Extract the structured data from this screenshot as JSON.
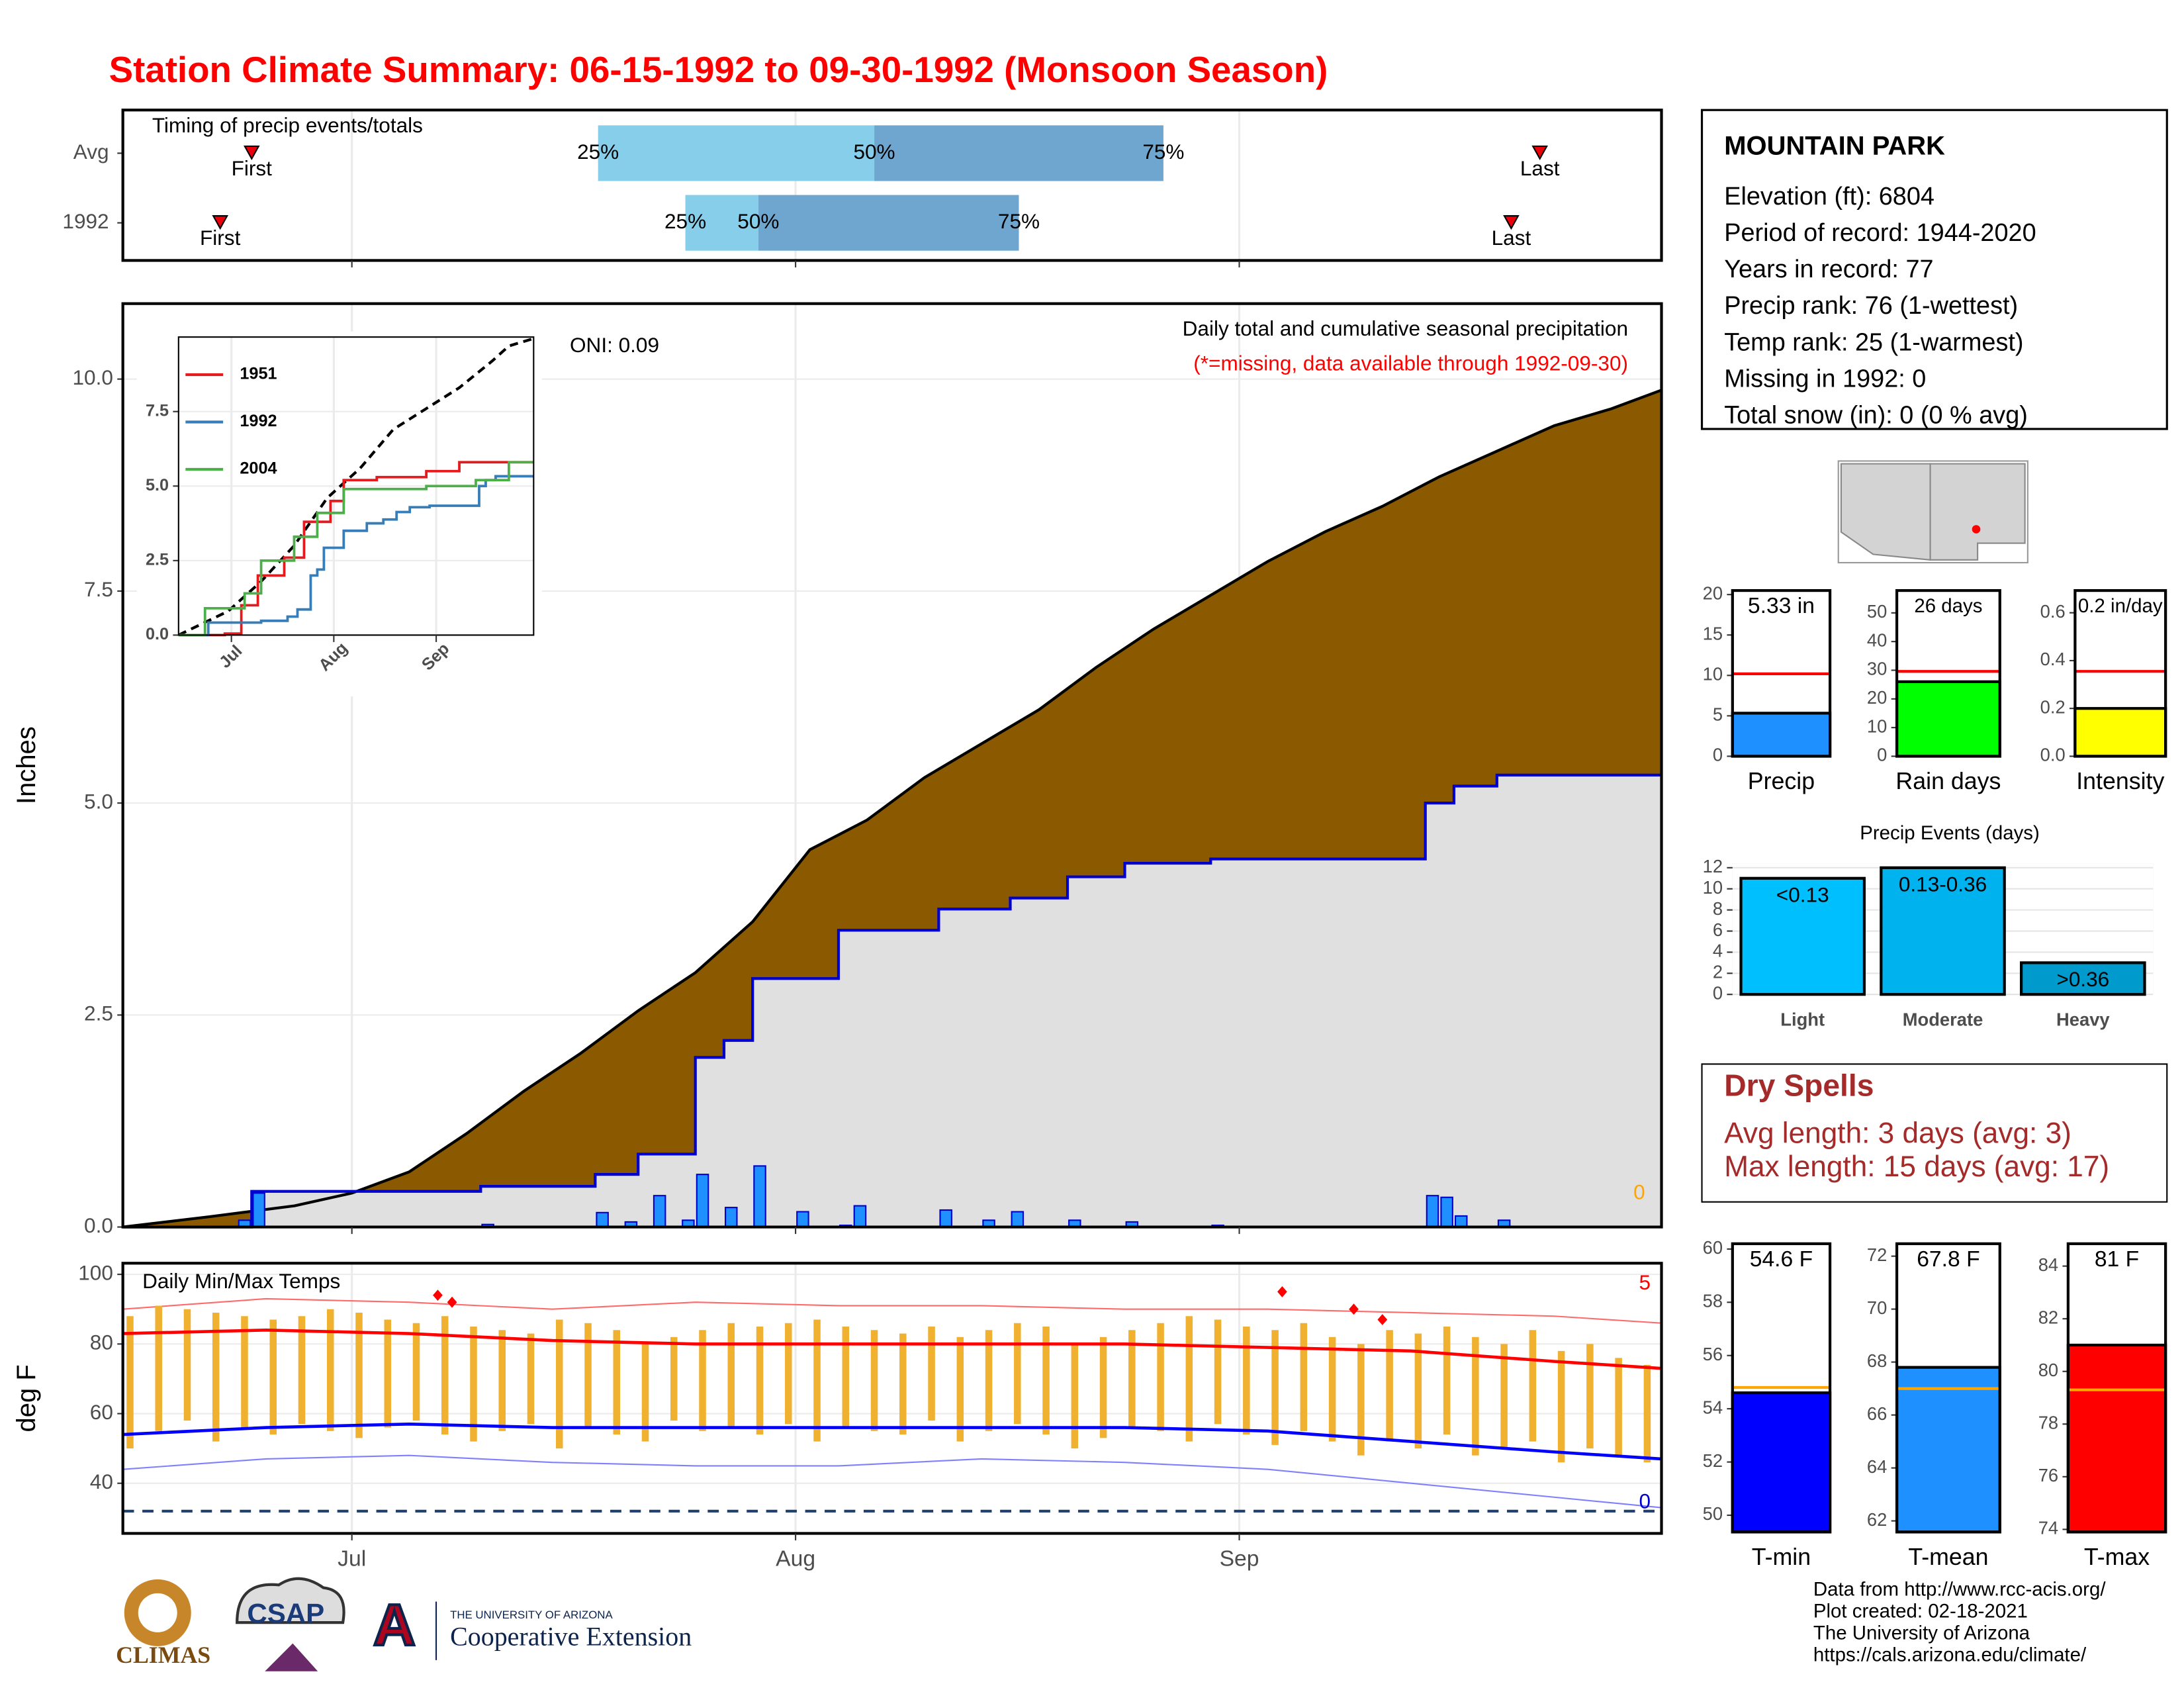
{
  "title": "Station Climate Summary: 06-15-1992 to 09-30-1992 (Monsoon Season)",
  "station": {
    "name": "MOUNTAIN PARK",
    "lines": [
      "Elevation (ft): 6804",
      "Period of record: 1944-2020",
      "Years in record: 77",
      "Precip rank: 76 (1-wettest)",
      "Temp rank: 25 (1-warmest)",
      "Missing in 1992: 0",
      "Total snow (in): 0 (0 % avg)"
    ]
  },
  "dry_spells": {
    "title": "Dry Spells",
    "lines": [
      "Avg length: 3 days (avg: 3)",
      "Max length: 15 days (avg: 17)"
    ]
  },
  "footer": {
    "logo_texts": [
      "CLIMAS",
      "CSAP",
      "THE UNIVERSITY OF ARIZONA",
      "Cooperative Extension"
    ],
    "credits": [
      "Data from http://www.rcc-acis.org/",
      "Plot created: 02-18-2021",
      "The University of Arizona",
      "https://cals.arizona.edu/climate/"
    ]
  },
  "chart_data": [
    {
      "type": "timing",
      "title": "Timing of precip events/totals",
      "categories": [
        "Avg",
        "1992"
      ],
      "first": [
        9,
        6.8
      ],
      "q25": [
        33.2,
        39.3
      ],
      "q50": [
        52.5,
        44.4
      ],
      "q75": [
        72.7,
        62.6
      ],
      "last": [
        99,
        97
      ],
      "labels": {
        "first": "First",
        "last": "Last",
        "q25": "25%",
        "q50": "50%",
        "q75": "75%"
      },
      "colors": [
        "#87ceeb",
        "#6fa6cf"
      ],
      "marker_color": "#e8000b",
      "xlim": [
        0,
        107.5
      ],
      "xticks": [
        16,
        47,
        78
      ],
      "grid": true
    },
    {
      "type": "area",
      "ylabel": "Inches",
      "note": "Daily total and cumulative seasonal precipitation",
      "note2": "(*=missing, data available through 1992-09-30)",
      "oni": "ONI: 0.09",
      "missing_count": 0,
      "average_cumulative": {
        "color": "#8b5a00",
        "x": [
          0,
          6,
          12,
          16,
          20,
          24,
          28,
          32,
          36,
          40,
          44,
          48,
          52,
          56,
          60,
          64,
          68,
          72,
          76,
          80,
          84,
          88,
          92,
          96,
          100,
          104,
          107.5
        ],
        "values": [
          0,
          0.12,
          0.25,
          0.4,
          0.65,
          1.1,
          1.6,
          2.05,
          2.55,
          3.0,
          3.6,
          4.45,
          4.8,
          5.3,
          5.7,
          6.1,
          6.6,
          7.05,
          7.45,
          7.85,
          8.2,
          8.5,
          8.85,
          9.15,
          9.45,
          9.65,
          9.87
        ]
      },
      "cumulative": {
        "color": "#0000cd",
        "fill": "#e0e0e0",
        "x": [
          0,
          9,
          9,
          25,
          25,
          33,
          33,
          36,
          36,
          40,
          40,
          42,
          42,
          44,
          44,
          50,
          50,
          57,
          57,
          62,
          62,
          66,
          66,
          70,
          70,
          76,
          76,
          91,
          91,
          93,
          93,
          96,
          96,
          107.5
        ],
        "values": [
          0,
          0,
          0.42,
          0.42,
          0.48,
          0.48,
          0.62,
          0.62,
          0.86,
          0.86,
          2.0,
          2.0,
          2.2,
          2.2,
          2.93,
          2.93,
          3.5,
          3.5,
          3.75,
          3.75,
          3.88,
          3.88,
          4.13,
          4.13,
          4.29,
          4.29,
          4.34,
          4.34,
          5.0,
          5.0,
          5.2,
          5.2,
          5.33,
          5.33
        ]
      },
      "daily": {
        "color": "#1e90ff",
        "x": [
          8,
          9,
          25,
          33,
          35,
          37,
          39,
          40,
          42,
          44,
          47,
          50,
          51,
          57,
          60,
          62,
          66,
          70,
          76,
          91,
          92,
          93,
          96
        ],
        "values": [
          0.08,
          0.4,
          0.03,
          0.17,
          0.06,
          0.37,
          0.08,
          0.62,
          0.23,
          0.72,
          0.18,
          0.02,
          0.25,
          0.2,
          0.08,
          0.18,
          0.08,
          0.06,
          0.02,
          0.37,
          0.35,
          0.13,
          0.08
        ]
      },
      "xlim": [
        0,
        107.5
      ],
      "xticks": [
        16,
        47,
        78
      ],
      "ylim": [
        0,
        10.89
      ],
      "yticks": [
        {
          "value": 0,
          "label": "0.0"
        },
        2.5,
        {
          "value": 5,
          "label": "5.0"
        },
        7.5,
        {
          "value": 10,
          "label": "10.0"
        }
      ],
      "grid": true
    },
    {
      "type": "line",
      "series": [
        {
          "name": "1951",
          "color": "#e41a1c",
          "x": [
            0,
            14,
            14,
            19,
            19,
            24,
            24,
            32,
            32,
            38,
            38,
            46,
            46,
            50,
            50,
            60,
            60,
            75,
            75,
            85,
            85,
            107.5
          ],
          "values": [
            0,
            0,
            0.05,
            0.05,
            1.0,
            1.0,
            2.0,
            2.0,
            2.6,
            2.6,
            3.8,
            3.8,
            4.5,
            4.5,
            5.2,
            5.2,
            5.3,
            5.3,
            5.5,
            5.5,
            5.8,
            5.8
          ]
        },
        {
          "name": "1992",
          "color": "#377eb8",
          "x": [
            0,
            9,
            9,
            25,
            25,
            33,
            33,
            36,
            36,
            40,
            40,
            42,
            42,
            44,
            44,
            50,
            50,
            57,
            57,
            62,
            62,
            66,
            66,
            70,
            70,
            76,
            76,
            91,
            91,
            93,
            93,
            96,
            96,
            107.5
          ],
          "values": [
            0,
            0,
            0.42,
            0.42,
            0.48,
            0.48,
            0.62,
            0.62,
            0.86,
            0.86,
            2.0,
            2.0,
            2.2,
            2.2,
            2.93,
            2.93,
            3.5,
            3.5,
            3.75,
            3.75,
            3.88,
            3.88,
            4.13,
            4.13,
            4.29,
            4.29,
            4.34,
            4.34,
            5.0,
            5.0,
            5.2,
            5.2,
            5.33,
            5.33
          ]
        },
        {
          "name": "2004",
          "color": "#4daf4a",
          "x": [
            0,
            8,
            8,
            20,
            20,
            25,
            25,
            35,
            35,
            42,
            42,
            50,
            50,
            75,
            75,
            90,
            90,
            100,
            100,
            107.5
          ],
          "values": [
            0,
            0,
            0.9,
            0.9,
            1.4,
            1.4,
            2.5,
            2.5,
            3.3,
            3.3,
            4.1,
            4.1,
            4.9,
            4.9,
            5.0,
            5.0,
            5.2,
            5.2,
            5.8,
            5.8
          ]
        }
      ],
      "average": {
        "color": "#000000",
        "x": [
          0,
          15,
          25,
          35,
          45,
          55,
          65,
          75,
          85,
          95,
          100,
          107.5
        ],
        "values": [
          0,
          0.8,
          1.8,
          3.0,
          4.6,
          5.6,
          6.9,
          7.6,
          8.3,
          9.2,
          9.7,
          9.95
        ]
      },
      "xlim": [
        0,
        107.5
      ],
      "xticks": [
        {
          "value": 16,
          "label": "Jul"
        },
        {
          "value": 47,
          "label": "Aug"
        },
        {
          "value": 78,
          "label": "Sep"
        }
      ],
      "ylim": [
        0,
        10
      ],
      "yticks": [
        {
          "value": 0,
          "label": "0.0"
        },
        2.5,
        {
          "value": 5,
          "label": "5.0"
        },
        7.5
      ],
      "grid": true
    },
    {
      "type": "temperature",
      "title": "Daily Min/Max Temps",
      "ylabel": "deg F",
      "daily_x": [
        0,
        2,
        4,
        6,
        8,
        10,
        12,
        14,
        16,
        18,
        20,
        22,
        24,
        26,
        28,
        30,
        32,
        34,
        36,
        38,
        40,
        42,
        44,
        46,
        48,
        50,
        52,
        54,
        56,
        58,
        60,
        62,
        64,
        66,
        68,
        70,
        72,
        74,
        76,
        78,
        80,
        82,
        84,
        86,
        88,
        90,
        92,
        94,
        96,
        98,
        100,
        102,
        104,
        106
      ],
      "daily_max": [
        88,
        91,
        90,
        89,
        88,
        87,
        88,
        90,
        89,
        87,
        86,
        88,
        85,
        84,
        83,
        87,
        86,
        84,
        80,
        82,
        84,
        86,
        85,
        86,
        87,
        85,
        84,
        83,
        85,
        82,
        84,
        86,
        85,
        80,
        82,
        84,
        86,
        88,
        87,
        85,
        84,
        86,
        82,
        80,
        84,
        83,
        85,
        82,
        80,
        84,
        78,
        80,
        76,
        74
      ],
      "daily_min": [
        50,
        55,
        58,
        52,
        56,
        54,
        57,
        55,
        53,
        56,
        58,
        54,
        52,
        55,
        57,
        50,
        56,
        54,
        52,
        58,
        55,
        56,
        54,
        57,
        52,
        56,
        55,
        54,
        58,
        52,
        55,
        57,
        54,
        50,
        53,
        56,
        55,
        52,
        57,
        54,
        51,
        55,
        52,
        48,
        52,
        50,
        54,
        48,
        50,
        52,
        46,
        50,
        48,
        46
      ],
      "daily_color": "#f0b030",
      "avg_max": {
        "color": "#ff0000",
        "x": [
          0,
          10,
          20,
          30,
          40,
          50,
          60,
          70,
          80,
          90,
          100,
          107.5
        ],
        "values": [
          83,
          84,
          83,
          81,
          80,
          80,
          80,
          80,
          79,
          78,
          75,
          73
        ]
      },
      "avg_min": {
        "color": "#0000ff",
        "x": [
          0,
          10,
          20,
          30,
          40,
          50,
          60,
          70,
          80,
          90,
          100,
          107.5
        ],
        "values": [
          54,
          56,
          57,
          56,
          56,
          56,
          56,
          56,
          55,
          52,
          49,
          47
        ]
      },
      "record_max": {
        "color": "#ff6a6a",
        "x": [
          0,
          10,
          20,
          30,
          40,
          50,
          60,
          70,
          80,
          90,
          100,
          107.5
        ],
        "values": [
          90,
          93,
          92,
          90,
          92,
          91,
          91,
          90,
          90,
          89,
          88,
          86
        ]
      },
      "record_min": {
        "color": "#8080ff",
        "x": [
          0,
          10,
          20,
          30,
          40,
          50,
          60,
          70,
          80,
          90,
          100,
          107.5
        ],
        "values": [
          44,
          47,
          48,
          46,
          45,
          45,
          47,
          46,
          44,
          40,
          36,
          33
        ]
      },
      "records": {
        "color": "#ff0000",
        "x": [
          22,
          23,
          81,
          86,
          88
        ],
        "values": [
          94,
          92,
          95,
          90,
          87
        ]
      },
      "freeze_line": 32,
      "freeze_color": "#1f3f6f",
      "record_high_count": 5,
      "record_low_count": 0,
      "xlim": [
        0,
        107.5
      ],
      "xticks": [
        {
          "value": 16,
          "label": "Jul"
        },
        {
          "value": 47,
          "label": "Aug"
        },
        {
          "value": 78,
          "label": "Sep"
        }
      ],
      "ylim": [
        25.6,
        103.2
      ],
      "yticks": [
        40,
        60,
        80,
        100
      ],
      "grid": true
    },
    {
      "type": "bar",
      "categories": [
        "Precip"
      ],
      "values": [
        5.33
      ],
      "value_labels": [
        "5.33 in"
      ],
      "average": 10.2,
      "average_color": "#ff0000",
      "colors": [
        "#1e90ff"
      ],
      "ylim": [
        0,
        20.5
      ],
      "yticks": [
        0,
        5,
        10,
        15,
        20
      ]
    },
    {
      "type": "bar",
      "categories": [
        "Rain days"
      ],
      "values": [
        26
      ],
      "value_labels": [
        "26 days"
      ],
      "average": 29.6,
      "average_color": "#ff0000",
      "colors": [
        "#00ff00"
      ],
      "ylim": [
        0,
        57.8
      ],
      "yticks": [
        0,
        10,
        20,
        30,
        40,
        50
      ]
    },
    {
      "type": "bar",
      "categories": [
        "Intensity"
      ],
      "values": [
        0.2
      ],
      "value_labels": [
        "0.2 in/day"
      ],
      "average": 0.355,
      "average_color": "#ff0000",
      "colors": [
        "#ffff00"
      ],
      "ylim": [
        0,
        0.693
      ],
      "yticks": [
        {
          "value": 0,
          "label": "0.0"
        },
        0.2,
        0.4,
        0.6
      ]
    },
    {
      "type": "bar",
      "title": "Precip Events (days)",
      "categories": [
        "Light",
        "Moderate",
        "Heavy"
      ],
      "values": [
        11,
        12,
        3
      ],
      "bin_labels": [
        "<0.13",
        "0.13-0.36",
        ">0.36"
      ],
      "colors": [
        "#00bfff",
        "#00b2ee",
        "#009acd"
      ],
      "ylim": [
        0,
        12.4
      ],
      "yticks": [
        0,
        2,
        4,
        6,
        8,
        10,
        12
      ],
      "grid": true
    },
    {
      "type": "bar",
      "categories": [
        "T-min"
      ],
      "values": [
        54.6
      ],
      "value_labels": [
        "54.6 F"
      ],
      "average": 54.8,
      "average_color": "#ffa500",
      "colors": [
        "#0000ff"
      ],
      "ylim": [
        49.37,
        60.2
      ],
      "yticks": [
        50,
        52,
        54,
        56,
        58,
        60
      ]
    },
    {
      "type": "bar",
      "categories": [
        "T-mean"
      ],
      "values": [
        67.8
      ],
      "value_labels": [
        "67.8 F"
      ],
      "average": 67.0,
      "average_color": "#ffa500",
      "colors": [
        "#1e90ff"
      ],
      "ylim": [
        61.58,
        72.47
      ],
      "yticks": [
        62,
        64,
        66,
        68,
        70,
        72
      ]
    },
    {
      "type": "bar",
      "categories": [
        "T-max"
      ],
      "values": [
        81
      ],
      "value_labels": [
        "81 F"
      ],
      "average": 79.3,
      "average_color": "#ffa500",
      "colors": [
        "#ff0000"
      ],
      "ylim": [
        73.9,
        84.85
      ],
      "yticks": [
        74,
        76,
        78,
        80,
        82,
        84
      ]
    }
  ]
}
